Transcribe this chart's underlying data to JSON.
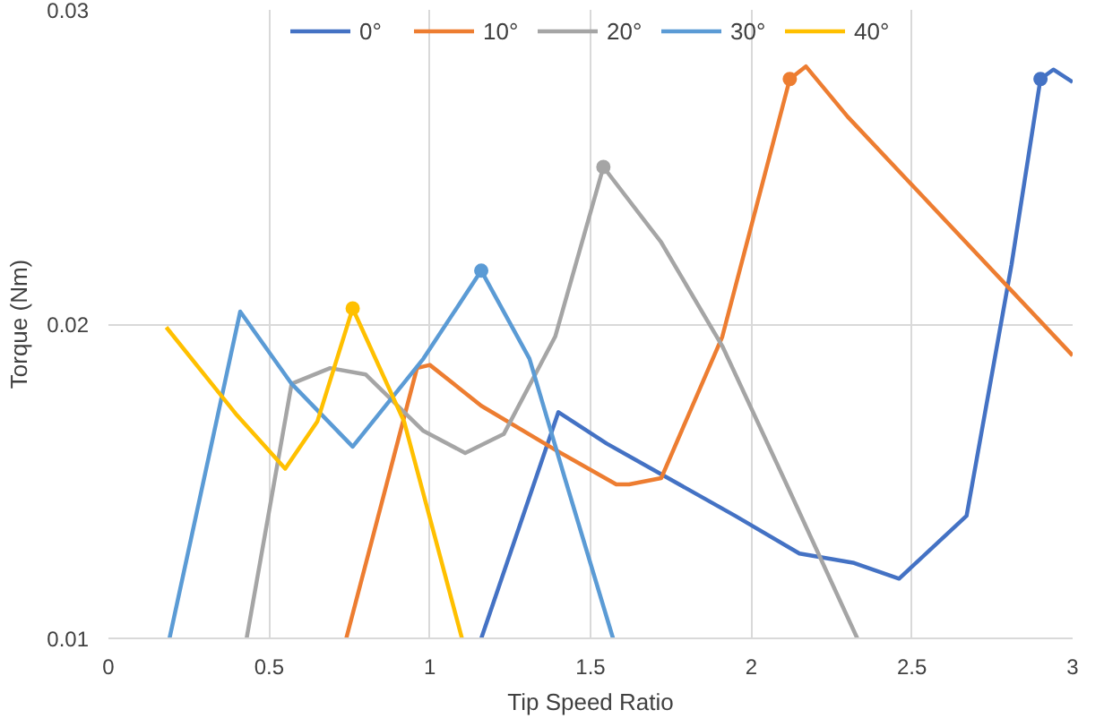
{
  "chart_data": {
    "type": "line",
    "xlabel": "Tip Speed Ratio",
    "ylabel": "Torque (Nm)",
    "xlim": [
      0,
      3
    ],
    "xticks": [
      0,
      0.5,
      1,
      1.5,
      2,
      2.5,
      3
    ],
    "ylim": [
      0.01,
      0.03
    ],
    "yticks": [
      0.01,
      0.02,
      0.03
    ],
    "grid": true,
    "legend": "top",
    "series": [
      {
        "name": "0°",
        "color": "#4472c4",
        "x": [
          1.16,
          1.4,
          1.55,
          1.95,
          2.15,
          2.32,
          2.46,
          2.67,
          2.81,
          2.9,
          2.94,
          3.0
        ],
        "values": [
          0.01,
          0.0172,
          0.0162,
          0.0139,
          0.0127,
          0.0124,
          0.0119,
          0.0139,
          0.0219,
          0.0278,
          0.0281,
          0.0277
        ]
      },
      {
        "name": "10°",
        "color": "#ed7d31",
        "x": [
          0.74,
          0.96,
          1.0,
          1.16,
          1.39,
          1.58,
          1.62,
          1.72,
          1.91,
          2.12,
          2.17,
          2.3,
          3.0
        ],
        "values": [
          0.01,
          0.0186,
          0.0187,
          0.0174,
          0.016,
          0.0149,
          0.0149,
          0.0151,
          0.0196,
          0.0278,
          0.0282,
          0.0266,
          0.019
        ]
      },
      {
        "name": "20°",
        "color": "#a5a5a5",
        "x": [
          0.43,
          0.57,
          0.69,
          0.8,
          0.98,
          1.11,
          1.23,
          1.39,
          1.54,
          1.72,
          1.91,
          2.11,
          2.33
        ],
        "values": [
          0.01,
          0.0181,
          0.0186,
          0.0184,
          0.0166,
          0.0159,
          0.0165,
          0.0196,
          0.025,
          0.0226,
          0.0193,
          0.0149,
          0.01
        ]
      },
      {
        "name": "30°",
        "color": "#5b9bd5",
        "x": [
          0.19,
          0.41,
          0.57,
          0.76,
          0.98,
          1.16,
          1.31,
          1.42,
          1.57
        ],
        "values": [
          0.01,
          0.0204,
          0.0181,
          0.0161,
          0.0189,
          0.0217,
          0.0189,
          0.0151,
          0.01
        ]
      },
      {
        "name": "40°",
        "color": "#ffc000",
        "x": [
          0.18,
          0.4,
          0.55,
          0.65,
          0.76,
          0.92,
          1.1
        ],
        "values": [
          0.0199,
          0.0171,
          0.0154,
          0.0169,
          0.0205,
          0.0169,
          0.01
        ]
      },
      {
        "type": "scatter",
        "marker": "circle",
        "color": "#4472c4",
        "x": [
          2.9
        ],
        "values": [
          0.0278
        ]
      },
      {
        "type": "scatter",
        "marker": "circle",
        "color": "#ed7d31",
        "x": [
          2.12
        ],
        "values": [
          0.0278
        ]
      },
      {
        "type": "scatter",
        "marker": "circle",
        "color": "#a5a5a5",
        "x": [
          1.54
        ],
        "values": [
          0.025
        ]
      },
      {
        "type": "scatter",
        "marker": "circle",
        "color": "#5b9bd5",
        "x": [
          1.16
        ],
        "values": [
          0.0217
        ]
      },
      {
        "type": "scatter",
        "marker": "circle",
        "color": "#ffc000",
        "x": [
          0.76
        ],
        "values": [
          0.0205
        ]
      }
    ]
  }
}
